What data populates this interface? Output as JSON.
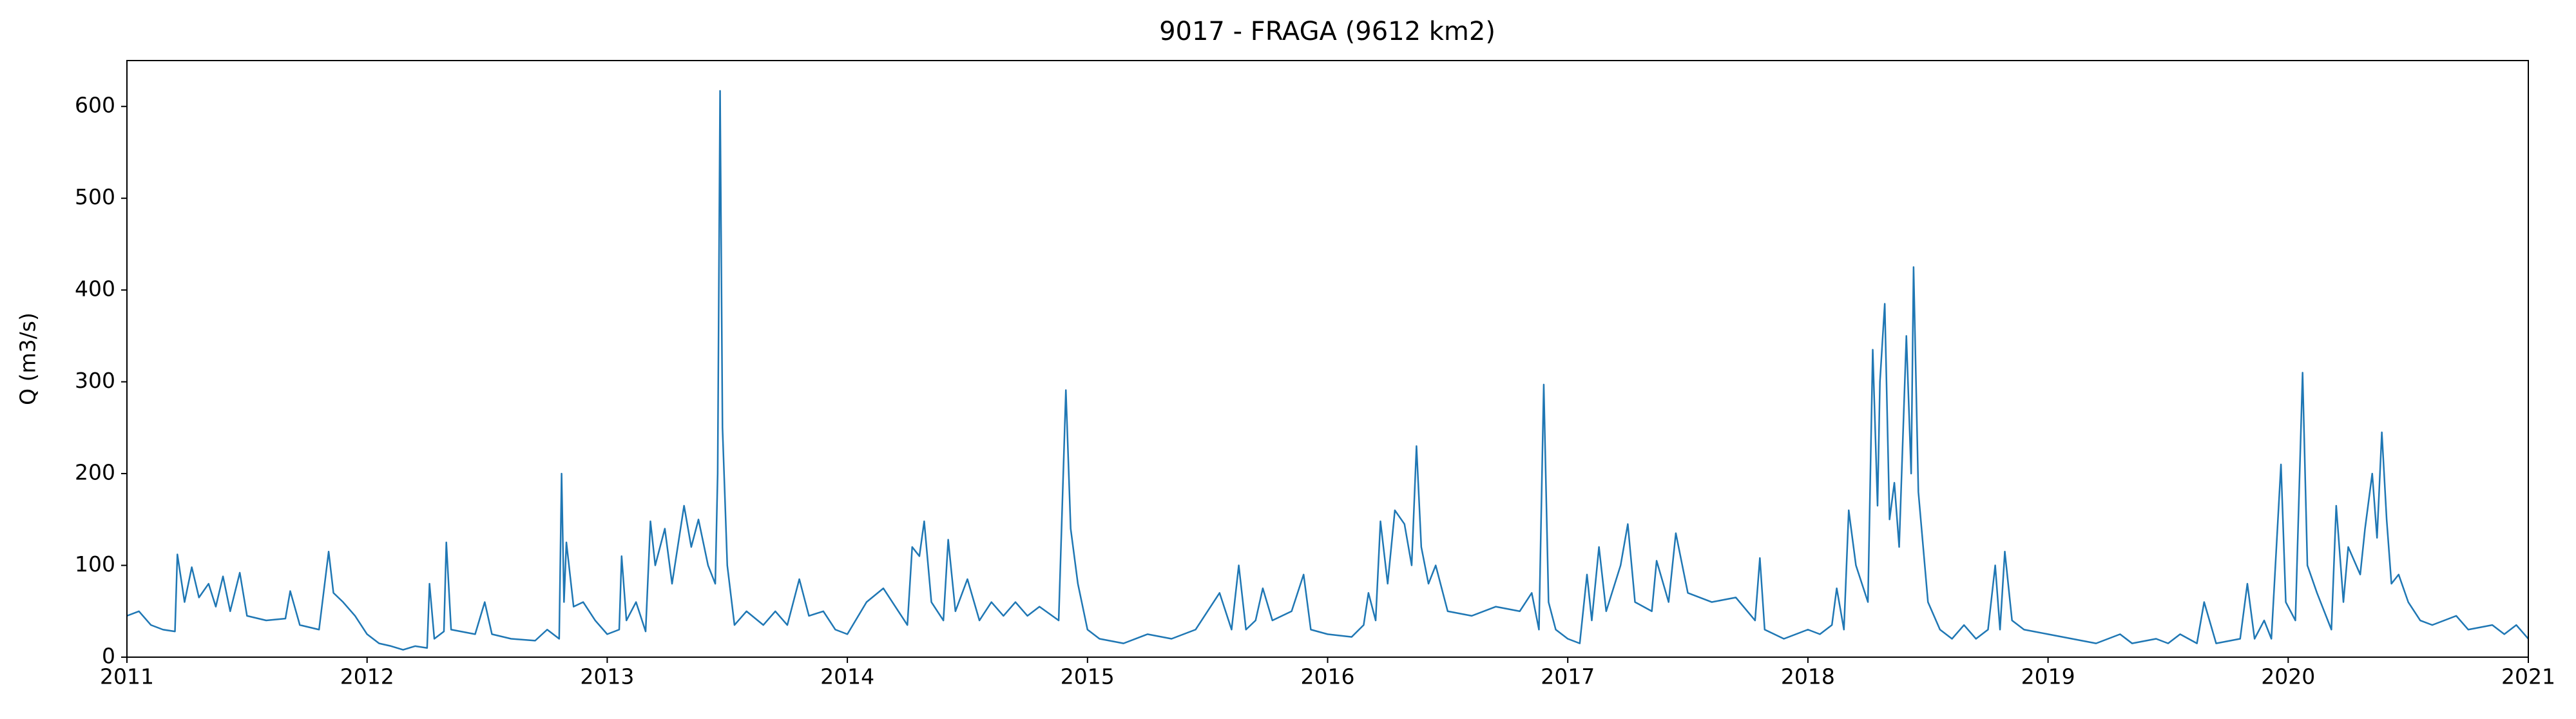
{
  "chart_data": {
    "type": "line",
    "title": "9017 - FRAGA (9612 km2)",
    "y_label": "Q (m3/s)",
    "xlim": [
      2011,
      2021
    ],
    "xticks": [
      2011,
      2012,
      2013,
      2014,
      2015,
      2016,
      2017,
      2018,
      2019,
      2020,
      2021
    ],
    "ylim": [
      0,
      650
    ],
    "yticks": [
      0,
      100,
      200,
      300,
      400,
      500,
      600
    ],
    "x": [
      2011.0,
      2011.05,
      2011.1,
      2011.15,
      2011.2,
      2011.21,
      2011.24,
      2011.27,
      2011.3,
      2011.34,
      2011.37,
      2011.4,
      2011.43,
      2011.47,
      2011.5,
      2011.58,
      2011.66,
      2011.68,
      2011.72,
      2011.8,
      2011.84,
      2011.86,
      2011.9,
      2011.95,
      2012.0,
      2012.05,
      2012.1,
      2012.15,
      2012.2,
      2012.25,
      2012.26,
      2012.28,
      2012.32,
      2012.33,
      2012.35,
      2012.45,
      2012.49,
      2012.52,
      2012.6,
      2012.7,
      2012.75,
      2012.8,
      2012.81,
      2012.82,
      2012.83,
      2012.86,
      2012.9,
      2012.95,
      2013.0,
      2013.05,
      2013.06,
      2013.08,
      2013.12,
      2013.16,
      2013.18,
      2013.2,
      2013.24,
      2013.27,
      2013.32,
      2013.35,
      2013.38,
      2013.42,
      2013.45,
      2013.46,
      2013.47,
      2013.48,
      2013.5,
      2013.53,
      2013.58,
      2013.65,
      2013.7,
      2013.75,
      2013.8,
      2013.84,
      2013.9,
      2013.95,
      2014.0,
      2014.08,
      2014.15,
      2014.2,
      2014.25,
      2014.27,
      2014.3,
      2014.32,
      2014.35,
      2014.4,
      2014.42,
      2014.45,
      2014.5,
      2014.55,
      2014.6,
      2014.65,
      2014.7,
      2014.75,
      2014.8,
      2014.88,
      2014.91,
      2014.93,
      2014.96,
      2015.0,
      2015.05,
      2015.15,
      2015.25,
      2015.35,
      2015.45,
      2015.5,
      2015.55,
      2015.6,
      2015.63,
      2015.66,
      2015.7,
      2015.73,
      2015.77,
      2015.85,
      2015.9,
      2015.93,
      2016.0,
      2016.1,
      2016.15,
      2016.17,
      2016.2,
      2016.22,
      2016.25,
      2016.28,
      2016.32,
      2016.35,
      2016.37,
      2016.39,
      2016.42,
      2016.45,
      2016.5,
      2016.6,
      2016.7,
      2016.8,
      2016.85,
      2016.88,
      2016.9,
      2016.92,
      2016.95,
      2017.0,
      2017.05,
      2017.08,
      2017.1,
      2017.13,
      2017.16,
      2017.22,
      2017.25,
      2017.28,
      2017.35,
      2017.37,
      2017.42,
      2017.45,
      2017.5,
      2017.6,
      2017.7,
      2017.78,
      2017.8,
      2017.82,
      2017.9,
      2018.0,
      2018.05,
      2018.1,
      2018.12,
      2018.15,
      2018.17,
      2018.2,
      2018.25,
      2018.27,
      2018.29,
      2018.3,
      2018.32,
      2018.34,
      2018.36,
      2018.38,
      2018.41,
      2018.43,
      2018.44,
      2018.46,
      2018.5,
      2018.55,
      2018.6,
      2018.65,
      2018.7,
      2018.75,
      2018.78,
      2018.8,
      2018.82,
      2018.85,
      2018.9,
      2019.0,
      2019.1,
      2019.2,
      2019.3,
      2019.35,
      2019.45,
      2019.5,
      2019.55,
      2019.62,
      2019.65,
      2019.7,
      2019.8,
      2019.83,
      2019.86,
      2019.9,
      2019.93,
      2019.97,
      2019.99,
      2020.03,
      2020.06,
      2020.08,
      2020.12,
      2020.15,
      2020.18,
      2020.2,
      2020.23,
      2020.25,
      2020.3,
      2020.32,
      2020.35,
      2020.37,
      2020.39,
      2020.41,
      2020.43,
      2020.46,
      2020.5,
      2020.55,
      2020.6,
      2020.7,
      2020.75,
      2020.85,
      2020.9,
      2020.95,
      2021.0
    ],
    "series": [
      {
        "name": "Q",
        "color": "#1f77b4",
        "values": [
          45,
          50,
          35,
          30,
          28,
          112,
          60,
          98,
          65,
          80,
          55,
          88,
          50,
          92,
          45,
          40,
          42,
          72,
          35,
          30,
          115,
          70,
          60,
          45,
          25,
          15,
          12,
          8,
          12,
          10,
          80,
          20,
          28,
          125,
          30,
          25,
          60,
          25,
          20,
          18,
          30,
          20,
          200,
          60,
          125,
          55,
          60,
          40,
          25,
          30,
          110,
          40,
          60,
          28,
          148,
          100,
          140,
          80,
          165,
          120,
          150,
          100,
          80,
          200,
          617,
          250,
          100,
          35,
          50,
          35,
          50,
          35,
          85,
          45,
          50,
          30,
          25,
          60,
          75,
          55,
          35,
          120,
          110,
          148,
          60,
          40,
          128,
          50,
          85,
          40,
          60,
          45,
          60,
          45,
          55,
          40,
          291,
          140,
          80,
          30,
          20,
          15,
          25,
          20,
          30,
          50,
          70,
          30,
          100,
          30,
          40,
          75,
          40,
          50,
          90,
          30,
          25,
          22,
          35,
          70,
          40,
          148,
          80,
          160,
          145,
          100,
          230,
          120,
          80,
          100,
          50,
          45,
          55,
          50,
          70,
          30,
          297,
          60,
          30,
          20,
          15,
          90,
          40,
          120,
          50,
          100,
          145,
          60,
          50,
          105,
          60,
          135,
          70,
          60,
          65,
          40,
          108,
          30,
          20,
          30,
          25,
          35,
          75,
          30,
          160,
          100,
          60,
          335,
          165,
          300,
          385,
          150,
          190,
          120,
          350,
          200,
          425,
          180,
          60,
          30,
          20,
          35,
          20,
          30,
          100,
          30,
          115,
          40,
          30,
          25,
          20,
          15,
          25,
          15,
          20,
          15,
          25,
          15,
          60,
          15,
          20,
          80,
          20,
          40,
          20,
          210,
          60,
          40,
          310,
          100,
          70,
          50,
          30,
          165,
          60,
          120,
          90,
          140,
          200,
          130,
          245,
          150,
          80,
          90,
          60,
          40,
          35,
          45,
          30,
          35,
          25,
          35,
          20
        ]
      }
    ]
  }
}
